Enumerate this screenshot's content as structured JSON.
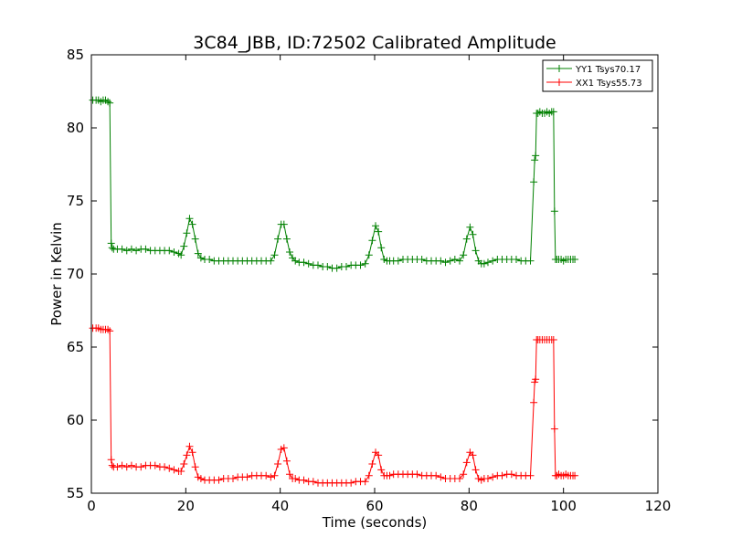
{
  "chart_data": {
    "type": "line",
    "title": "3C84_JBB, ID:72502 Calibrated Amplitude",
    "xlabel": "Time (seconds)",
    "ylabel": "Power in Kelvin",
    "xlim": [
      0,
      120
    ],
    "ylim": [
      55,
      85
    ],
    "xticks": [
      0,
      20,
      40,
      60,
      80,
      100,
      120
    ],
    "yticks": [
      55,
      60,
      65,
      70,
      75,
      80,
      85
    ],
    "grid": false,
    "legend_position": "top-right",
    "series": [
      {
        "name": "YY1 Tsys70.17",
        "color": "#008000",
        "marker": "+",
        "x": [
          0.3,
          1.0,
          1.5,
          2.0,
          2.5,
          3.0,
          3.5,
          3.9,
          4.2,
          4.4,
          4.7,
          5.5,
          6.5,
          7.5,
          8.5,
          9.5,
          10.5,
          11.5,
          12.5,
          13.5,
          14.5,
          15.5,
          16.5,
          17.5,
          18.5,
          19.0,
          19.6,
          20.2,
          20.8,
          21.4,
          22.0,
          22.6,
          23.2,
          24.0,
          25.0,
          26.0,
          27.0,
          28.0,
          29.0,
          30.0,
          31.0,
          32.0,
          33.0,
          34.0,
          35.0,
          36.0,
          37.0,
          38.0,
          38.8,
          39.5,
          40.2,
          40.8,
          41.4,
          42.0,
          42.6,
          43.2,
          44.0,
          45.0,
          46.0,
          47.0,
          48.0,
          49.0,
          50.0,
          51.0,
          52.0,
          53.0,
          54.0,
          55.0,
          56.0,
          57.0,
          58.0,
          58.8,
          59.5,
          60.2,
          60.8,
          61.4,
          62.0,
          62.6,
          63.2,
          64.0,
          65.0,
          66.0,
          67.0,
          68.0,
          69.0,
          70.0,
          71.0,
          72.0,
          73.0,
          74.0,
          75.0,
          76.0,
          77.0,
          78.0,
          78.8,
          79.5,
          80.2,
          80.8,
          81.4,
          82.0,
          82.6,
          83.2,
          84.0,
          85.0,
          86.0,
          87.0,
          88.0,
          89.0,
          90.0,
          91.0,
          92.0,
          93.0,
          93.7,
          93.9,
          94.1,
          94.3,
          94.6,
          95.0,
          95.5,
          96.0,
          96.5,
          97.0,
          97.5,
          97.9,
          98.1,
          98.3,
          98.6,
          99.0,
          99.5,
          100.0,
          100.5,
          101.0,
          101.5,
          102.0,
          102.4
        ],
        "y": [
          81.9,
          81.9,
          81.9,
          81.8,
          81.9,
          81.9,
          81.8,
          81.7,
          72.1,
          71.8,
          71.7,
          71.7,
          71.7,
          71.6,
          71.7,
          71.6,
          71.7,
          71.7,
          71.6,
          71.6,
          71.6,
          71.6,
          71.6,
          71.5,
          71.4,
          71.3,
          71.9,
          72.8,
          73.8,
          73.4,
          72.4,
          71.4,
          71.1,
          71.0,
          71.0,
          70.9,
          70.9,
          70.9,
          70.9,
          70.9,
          70.9,
          70.9,
          70.9,
          70.9,
          70.9,
          70.9,
          70.9,
          70.9,
          71.3,
          72.4,
          73.4,
          73.4,
          72.4,
          71.5,
          71.1,
          70.9,
          70.8,
          70.8,
          70.7,
          70.6,
          70.6,
          70.5,
          70.5,
          70.4,
          70.4,
          70.5,
          70.5,
          70.6,
          70.6,
          70.6,
          70.7,
          71.3,
          72.3,
          73.3,
          72.9,
          71.8,
          71.0,
          70.9,
          70.9,
          70.9,
          70.9,
          71.0,
          71.0,
          71.0,
          71.0,
          71.0,
          70.9,
          70.9,
          70.9,
          70.9,
          70.8,
          70.9,
          71.0,
          70.9,
          71.3,
          72.4,
          73.2,
          72.7,
          71.6,
          70.9,
          70.7,
          70.7,
          70.8,
          70.9,
          71.0,
          71.0,
          71.0,
          71.0,
          71.0,
          70.9,
          70.9,
          70.9,
          76.3,
          77.8,
          78.1,
          81.0,
          81.0,
          81.1,
          81.0,
          81.0,
          81.1,
          81.0,
          81.1,
          81.1,
          74.3,
          71.0,
          71.0,
          71.0,
          71.0,
          70.9,
          71.0,
          71.0,
          71.0,
          71.0,
          71.0
        ]
      },
      {
        "name": "XX1 Tsys55.73",
        "color": "#ff0000",
        "marker": "+",
        "x": [
          0.3,
          1.0,
          1.5,
          2.0,
          2.5,
          3.0,
          3.5,
          3.9,
          4.2,
          4.4,
          4.7,
          5.5,
          6.5,
          7.5,
          8.5,
          9.5,
          10.5,
          11.5,
          12.5,
          13.5,
          14.5,
          15.5,
          16.5,
          17.5,
          18.5,
          19.0,
          19.6,
          20.2,
          20.8,
          21.4,
          22.0,
          22.6,
          23.2,
          24.0,
          25.0,
          26.0,
          27.0,
          28.0,
          29.0,
          30.0,
          31.0,
          32.0,
          33.0,
          34.0,
          35.0,
          36.0,
          37.0,
          38.0,
          38.8,
          39.5,
          40.2,
          40.8,
          41.4,
          42.0,
          42.6,
          43.2,
          44.0,
          45.0,
          46.0,
          47.0,
          48.0,
          49.0,
          50.0,
          51.0,
          52.0,
          53.0,
          54.0,
          55.0,
          56.0,
          57.0,
          58.0,
          58.8,
          59.5,
          60.2,
          60.8,
          61.4,
          62.0,
          62.6,
          63.2,
          64.0,
          65.0,
          66.0,
          67.0,
          68.0,
          69.0,
          70.0,
          71.0,
          72.0,
          73.0,
          74.0,
          75.0,
          76.0,
          77.0,
          78.0,
          78.8,
          79.5,
          80.2,
          80.8,
          81.4,
          82.0,
          82.6,
          83.2,
          84.0,
          85.0,
          86.0,
          87.0,
          88.0,
          89.0,
          90.0,
          91.0,
          92.0,
          93.0,
          93.7,
          93.9,
          94.1,
          94.3,
          94.6,
          95.0,
          95.5,
          96.0,
          96.5,
          97.0,
          97.5,
          97.9,
          98.1,
          98.3,
          98.6,
          99.0,
          99.5,
          100.0,
          100.5,
          101.0,
          101.5,
          102.0,
          102.4
        ],
        "y": [
          66.3,
          66.3,
          66.3,
          66.2,
          66.2,
          66.2,
          66.2,
          66.1,
          57.3,
          56.9,
          56.8,
          56.8,
          56.9,
          56.8,
          56.9,
          56.8,
          56.8,
          56.9,
          56.9,
          56.9,
          56.8,
          56.8,
          56.7,
          56.6,
          56.5,
          56.5,
          57.0,
          57.6,
          58.2,
          57.8,
          56.8,
          56.1,
          56.0,
          55.9,
          55.9,
          55.9,
          55.9,
          56.0,
          56.0,
          56.0,
          56.1,
          56.1,
          56.1,
          56.2,
          56.2,
          56.2,
          56.2,
          56.1,
          56.2,
          57.0,
          58.0,
          58.1,
          57.2,
          56.3,
          56.0,
          56.0,
          55.9,
          55.9,
          55.8,
          55.8,
          55.7,
          55.7,
          55.7,
          55.7,
          55.7,
          55.7,
          55.7,
          55.7,
          55.8,
          55.8,
          55.8,
          56.2,
          57.0,
          57.8,
          57.6,
          56.6,
          56.2,
          56.2,
          56.2,
          56.3,
          56.3,
          56.3,
          56.3,
          56.3,
          56.3,
          56.2,
          56.2,
          56.2,
          56.2,
          56.1,
          56.0,
          56.0,
          56.0,
          56.0,
          56.3,
          57.1,
          57.8,
          57.6,
          56.6,
          56.0,
          55.9,
          56.0,
          56.0,
          56.1,
          56.2,
          56.2,
          56.3,
          56.3,
          56.2,
          56.2,
          56.2,
          56.2,
          61.2,
          62.6,
          62.8,
          65.5,
          65.5,
          65.5,
          65.5,
          65.5,
          65.5,
          65.5,
          65.5,
          65.5,
          59.4,
          56.2,
          56.2,
          56.3,
          56.2,
          56.2,
          56.3,
          56.2,
          56.2,
          56.2,
          56.2
        ]
      }
    ]
  }
}
